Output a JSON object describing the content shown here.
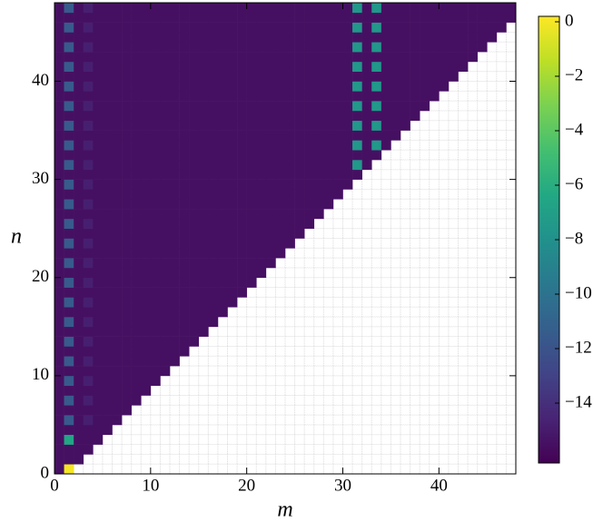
{
  "chart_data": {
    "type": "heatmap",
    "xlabel": "m",
    "ylabel": "n",
    "colormap": "viridis",
    "xlim": [
      0,
      48
    ],
    "ylim": [
      0,
      48
    ],
    "xticks": [
      0,
      10,
      20,
      30,
      40
    ],
    "yticks": [
      0,
      10,
      20,
      30,
      40
    ],
    "clim": [
      -16.2,
      0.2
    ],
    "cticks": [
      0,
      {
        "value": -2,
        "label": "−2"
      },
      {
        "value": -4,
        "label": "−4"
      },
      {
        "value": -6,
        "label": "−6"
      },
      {
        "value": -8,
        "label": "−8"
      },
      {
        "value": -10,
        "label": "−10"
      },
      {
        "value": -12,
        "label": "−12"
      },
      {
        "value": -14,
        "label": "−14"
      }
    ],
    "z": [
      [
        -15.5,
        0
      ],
      [
        -15.5,
        -15.5,
        -15.5
      ],
      [
        -15.5,
        -15.5,
        -15.5,
        -15.5
      ],
      [
        -15.5,
        -6.5,
        -15.5,
        -15.5,
        -15.5
      ],
      [
        -15.5,
        -15.5,
        -15.5,
        -15.5,
        -15.5,
        -15.5
      ],
      [
        -15.5,
        -11.5,
        -15.5,
        -14.8,
        -15.5,
        -15.5,
        -15.5
      ],
      [
        -15.5,
        -15.5,
        -15.5,
        -15.5,
        -15.5,
        -15.5,
        -15.5,
        -15.5
      ],
      [
        -15.5,
        -11.5,
        -15.5,
        -14.8,
        -15.5,
        -15.5,
        -15.5,
        -15.5,
        -15.5
      ],
      [
        -15.5,
        -15.5,
        -15.5,
        -15.5,
        -15.5,
        -15.5,
        -15.5,
        -15.5,
        -15.5,
        -15.5
      ],
      [
        -15.5,
        -11.5,
        -15.5,
        -14.8,
        -15.5,
        -15.5,
        -15.5,
        -15.5,
        -15.5,
        -15.5,
        -15.5
      ],
      [
        -15.5,
        -15.5,
        -15.5,
        -15.5,
        -15.5,
        -15.5,
        -15.5,
        -15.5,
        -15.5,
        -15.5,
        -15.5,
        -15.5
      ],
      [
        -15.5,
        -11.5,
        -15.5,
        -14.8,
        -15.5,
        -15.5,
        -15.5,
        -15.5,
        -15.5,
        -15.5,
        -15.5,
        -15.5,
        -15.5
      ],
      [
        -15.5,
        -15.5,
        -15.5,
        -15.5,
        -15.5,
        -15.5,
        -15.5,
        -15.5,
        -15.5,
        -15.5,
        -15.5,
        -15.5,
        -15.5,
        -15.5
      ],
      [
        -15.5,
        -11.5,
        -15.5,
        -14.8,
        -15.5,
        -15.5,
        -15.5,
        -15.5,
        -15.5,
        -15.5,
        -15.5,
        -15.5,
        -15.5,
        -15.5,
        -15.5
      ],
      [
        -15.5,
        -15.5,
        -15.5,
        -15.5,
        -15.5,
        -15.5,
        -15.5,
        -15.5,
        -15.5,
        -15.5,
        -15.5,
        -15.5,
        -15.5,
        -15.5,
        -15.5,
        -15.5
      ],
      [
        -15.5,
        -11.5,
        -15.5,
        -14.8,
        -15.5,
        -15.5,
        -15.5,
        -15.5,
        -15.5,
        -15.5,
        -15.5,
        -15.5,
        -15.5,
        -15.5,
        -15.5,
        -15.5,
        -15.5
      ],
      [
        -15.5,
        -15.5,
        -15.5,
        -15.5,
        -15.5,
        -15.5,
        -15.5,
        -15.5,
        -15.5,
        -15.5,
        -15.5,
        -15.5,
        -15.5,
        -15.5,
        -15.5,
        -15.5,
        -15.5,
        -15.5
      ],
      [
        -15.5,
        -11.5,
        -15.5,
        -14.8,
        -15.5,
        -15.5,
        -15.5,
        -15.5,
        -15.5,
        -15.5,
        -15.5,
        -15.5,
        -15.5,
        -15.5,
        -15.5,
        -15.5,
        -15.5,
        -15.5,
        -15.5
      ],
      [
        -15.5,
        -15.5,
        -15.5,
        -15.5,
        -15.5,
        -15.5,
        -15.5,
        -15.5,
        -15.5,
        -15.5,
        -15.5,
        -15.5,
        -15.5,
        -15.5,
        -15.5,
        -15.5,
        -15.5,
        -15.5,
        -15.5,
        -15.5
      ],
      [
        -15.5,
        -11.5,
        -15.5,
        -14.8,
        -15.5,
        -15.5,
        -15.5,
        -15.5,
        -15.5,
        -15.5,
        -15.5,
        -15.5,
        -15.5,
        -15.5,
        -15.5,
        -15.5,
        -15.5,
        -15.5,
        -15.5,
        -15.5,
        -15.5
      ],
      [
        -15.5,
        -15.5,
        -15.5,
        -15.5,
        -15.5,
        -15.5,
        -15.5,
        -15.5,
        -15.5,
        -15.5,
        -15.5,
        -15.5,
        -15.5,
        -15.5,
        -15.5,
        -15.5,
        -15.5,
        -15.5,
        -15.5,
        -15.5,
        -15.5,
        -15.5
      ],
      [
        -15.5,
        -11.5,
        -15.5,
        -14.8,
        -15.5,
        -15.5,
        -15.5,
        -15.5,
        -15.5,
        -15.5,
        -15.5,
        -15.5,
        -15.5,
        -15.5,
        -15.5,
        -15.5,
        -15.5,
        -15.5,
        -15.5,
        -15.5,
        -15.5,
        -15.5,
        -15.5
      ],
      [
        -15.5,
        -15.5,
        -15.5,
        -15.5,
        -15.5,
        -15.5,
        -15.5,
        -15.5,
        -15.5,
        -15.5,
        -15.5,
        -15.5,
        -15.5,
        -15.5,
        -15.5,
        -15.5,
        -15.5,
        -15.5,
        -15.5,
        -15.5,
        -15.5,
        -15.5,
        -15.5,
        -15.5
      ],
      [
        -15.5,
        -11.5,
        -15.5,
        -14.8,
        -15.5,
        -15.5,
        -15.5,
        -15.5,
        -15.5,
        -15.5,
        -15.5,
        -15.5,
        -15.5,
        -15.5,
        -15.5,
        -15.5,
        -15.5,
        -15.5,
        -15.5,
        -15.5,
        -15.5,
        -15.5,
        -15.5,
        -15.5,
        -15.5
      ],
      [
        -15.5,
        -15.5,
        -15.5,
        -15.5,
        -15.5,
        -15.5,
        -15.5,
        -15.5,
        -15.5,
        -15.5,
        -15.5,
        -15.5,
        -15.5,
        -15.5,
        -15.5,
        -15.5,
        -15.5,
        -15.5,
        -15.5,
        -15.5,
        -15.5,
        -15.5,
        -15.5,
        -15.5,
        -15.5,
        -15.5
      ],
      [
        -15.5,
        -11.5,
        -15.5,
        -14.8,
        -15.5,
        -15.5,
        -15.5,
        -15.5,
        -15.5,
        -15.5,
        -15.5,
        -15.5,
        -15.5,
        -15.5,
        -15.5,
        -15.5,
        -15.5,
        -15.5,
        -15.5,
        -15.5,
        -15.5,
        -15.5,
        -15.5,
        -15.5,
        -15.5,
        -15.5,
        -15.5
      ],
      [
        -15.5,
        -15.5,
        -15.5,
        -15.5,
        -15.5,
        -15.5,
        -15.5,
        -15.5,
        -15.5,
        -15.5,
        -15.5,
        -15.5,
        -15.5,
        -15.5,
        -15.5,
        -15.5,
        -15.5,
        -15.5,
        -15.5,
        -15.5,
        -15.5,
        -15.5,
        -15.5,
        -15.5,
        -15.5,
        -15.5,
        -15.5,
        -15.5
      ],
      [
        -15.5,
        -11.5,
        -15.5,
        -14.8,
        -15.5,
        -15.5,
        -15.5,
        -15.5,
        -15.5,
        -15.5,
        -15.5,
        -15.5,
        -15.5,
        -15.5,
        -15.5,
        -15.5,
        -15.5,
        -15.5,
        -15.5,
        -15.5,
        -15.5,
        -15.5,
        -15.5,
        -15.5,
        -15.5,
        -15.5,
        -15.5,
        -15.5,
        -15.5
      ],
      [
        -15.5,
        -15.5,
        -15.5,
        -15.5,
        -15.5,
        -15.5,
        -15.5,
        -15.5,
        -15.5,
        -15.5,
        -15.5,
        -15.5,
        -15.5,
        -15.5,
        -15.5,
        -15.5,
        -15.5,
        -15.5,
        -15.5,
        -15.5,
        -15.5,
        -15.5,
        -15.5,
        -15.5,
        -15.5,
        -15.5,
        -15.5,
        -15.5,
        -15.5,
        -15.5
      ],
      [
        -15.5,
        -11.5,
        -15.5,
        -14.8,
        -15.5,
        -15.5,
        -15.5,
        -15.5,
        -15.5,
        -15.5,
        -15.5,
        -15.5,
        -15.5,
        -15.5,
        -15.5,
        -15.5,
        -15.5,
        -15.5,
        -15.5,
        -15.5,
        -15.5,
        -15.5,
        -15.5,
        -15.5,
        -15.5,
        -15.5,
        -15.5,
        -15.5,
        -15.5,
        -15.5,
        -15.5
      ],
      [
        -15.5,
        -15.5,
        -15.5,
        -15.5,
        -15.5,
        -15.5,
        -15.5,
        -15.5,
        -15.5,
        -15.5,
        -15.5,
        -15.5,
        -15.5,
        -15.5,
        -15.5,
        -15.5,
        -15.5,
        -15.5,
        -15.5,
        -15.5,
        -15.5,
        -15.5,
        -15.5,
        -15.5,
        -15.5,
        -15.5,
        -15.5,
        -15.5,
        -15.5,
        -15.5,
        -15.5,
        -15.5
      ],
      [
        -15.5,
        -11.5,
        -15.5,
        -14.8,
        -15.5,
        -15.5,
        -15.5,
        -15.5,
        -15.5,
        -15.5,
        -15.5,
        -15.5,
        -15.5,
        -15.5,
        -15.5,
        -15.5,
        -15.5,
        -15.5,
        -15.5,
        -15.5,
        -15.5,
        -15.5,
        -15.5,
        -15.5,
        -15.5,
        -15.5,
        -15.5,
        -15.5,
        -15.5,
        -15.5,
        -15.5,
        -7.5,
        -15.5
      ],
      [
        -15.5,
        -15.5,
        -15.5,
        -15.5,
        -15.5,
        -15.5,
        -15.5,
        -15.5,
        -15.5,
        -15.5,
        -15.5,
        -15.5,
        -15.5,
        -15.5,
        -15.5,
        -15.5,
        -15.5,
        -15.5,
        -15.5,
        -15.5,
        -15.5,
        -15.5,
        -15.5,
        -15.5,
        -15.5,
        -15.5,
        -15.5,
        -15.5,
        -15.5,
        -15.5,
        -15.5,
        -15.5,
        -15.5,
        -15.5
      ],
      [
        -15.5,
        -11.5,
        -15.5,
        -14.8,
        -15.5,
        -15.5,
        -15.5,
        -15.5,
        -15.5,
        -15.5,
        -15.5,
        -15.5,
        -15.5,
        -15.5,
        -15.5,
        -15.5,
        -15.5,
        -15.5,
        -15.5,
        -15.5,
        -15.5,
        -15.5,
        -15.5,
        -15.5,
        -15.5,
        -15.5,
        -15.5,
        -15.5,
        -15.5,
        -15.5,
        -15.5,
        -7.5,
        -15.5,
        -7.5,
        -15.5
      ],
      [
        -15.5,
        -15.5,
        -15.5,
        -15.5,
        -15.5,
        -15.5,
        -15.5,
        -15.5,
        -15.5,
        -15.5,
        -15.5,
        -15.5,
        -15.5,
        -15.5,
        -15.5,
        -15.5,
        -15.5,
        -15.5,
        -15.5,
        -15.5,
        -15.5,
        -15.5,
        -15.5,
        -15.5,
        -15.5,
        -15.5,
        -15.5,
        -15.5,
        -15.5,
        -15.5,
        -15.5,
        -15.5,
        -15.5,
        -15.5,
        -15.5,
        -15.5
      ],
      [
        -15.5,
        -11.5,
        -15.5,
        -14.8,
        -15.5,
        -15.5,
        -15.5,
        -15.5,
        -15.5,
        -15.5,
        -15.5,
        -15.5,
        -15.5,
        -15.5,
        -15.5,
        -15.5,
        -15.5,
        -15.5,
        -15.5,
        -15.5,
        -15.5,
        -15.5,
        -15.5,
        -15.5,
        -15.5,
        -15.5,
        -15.5,
        -15.5,
        -15.5,
        -15.5,
        -15.5,
        -7.5,
        -15.5,
        -7.5,
        -15.5,
        -15.5,
        -15.5
      ],
      [
        -15.5,
        -15.5,
        -15.5,
        -15.5,
        -15.5,
        -15.5,
        -15.5,
        -15.5,
        -15.5,
        -15.5,
        -15.5,
        -15.5,
        -15.5,
        -15.5,
        -15.5,
        -15.5,
        -15.5,
        -15.5,
        -15.5,
        -15.5,
        -15.5,
        -15.5,
        -15.5,
        -15.5,
        -15.5,
        -15.5,
        -15.5,
        -15.5,
        -15.5,
        -15.5,
        -15.5,
        -15.5,
        -15.5,
        -15.5,
        -15.5,
        -15.5,
        -15.5,
        -15.5
      ],
      [
        -15.5,
        -11.5,
        -15.5,
        -14.8,
        -15.5,
        -15.5,
        -15.5,
        -15.5,
        -15.5,
        -15.5,
        -15.5,
        -15.5,
        -15.5,
        -15.5,
        -15.5,
        -15.5,
        -15.5,
        -15.5,
        -15.5,
        -15.5,
        -15.5,
        -15.5,
        -15.5,
        -15.5,
        -15.5,
        -15.5,
        -15.5,
        -15.5,
        -15.5,
        -15.5,
        -15.5,
        -7.5,
        -15.5,
        -7.5,
        -15.5,
        -15.5,
        -15.5,
        -15.5,
        -15.5
      ],
      [
        -15.5,
        -15.5,
        -15.5,
        -15.5,
        -15.5,
        -15.5,
        -15.5,
        -15.5,
        -15.5,
        -15.5,
        -15.5,
        -15.5,
        -15.5,
        -15.5,
        -15.5,
        -15.5,
        -15.5,
        -15.5,
        -15.5,
        -15.5,
        -15.5,
        -15.5,
        -15.5,
        -15.5,
        -15.5,
        -15.5,
        -15.5,
        -15.5,
        -15.5,
        -15.5,
        -15.5,
        -15.5,
        -15.5,
        -15.5,
        -15.5,
        -15.5,
        -15.5,
        -15.5,
        -15.5,
        -15.5
      ],
      [
        -15.5,
        -11.5,
        -15.5,
        -14.8,
        -15.5,
        -15.5,
        -15.5,
        -15.5,
        -15.5,
        -15.5,
        -15.5,
        -15.5,
        -15.5,
        -15.5,
        -15.5,
        -15.5,
        -15.5,
        -15.5,
        -15.5,
        -15.5,
        -15.5,
        -15.5,
        -15.5,
        -15.5,
        -15.5,
        -15.5,
        -15.5,
        -15.5,
        -15.5,
        -15.5,
        -15.5,
        -7.5,
        -15.5,
        -7.5,
        -15.5,
        -15.5,
        -15.5,
        -15.5,
        -15.5,
        -15.5,
        -15.5
      ],
      [
        -15.5,
        -15.5,
        -15.5,
        -15.5,
        -15.5,
        -15.5,
        -15.5,
        -15.5,
        -15.5,
        -15.5,
        -15.5,
        -15.5,
        -15.5,
        -15.5,
        -15.5,
        -15.5,
        -15.5,
        -15.5,
        -15.5,
        -15.5,
        -15.5,
        -15.5,
        -15.5,
        -15.5,
        -15.5,
        -15.5,
        -15.5,
        -15.5,
        -15.5,
        -15.5,
        -15.5,
        -15.5,
        -15.5,
        -15.5,
        -15.5,
        -15.5,
        -15.5,
        -15.5,
        -15.5,
        -15.5,
        -15.5,
        -15.5
      ],
      [
        -15.5,
        -11.5,
        -15.5,
        -14.8,
        -15.5,
        -15.5,
        -15.5,
        -15.5,
        -15.5,
        -15.5,
        -15.5,
        -15.5,
        -15.5,
        -15.5,
        -15.5,
        -15.5,
        -15.5,
        -15.5,
        -15.5,
        -15.5,
        -15.5,
        -15.5,
        -15.5,
        -15.5,
        -15.5,
        -15.5,
        -15.5,
        -15.5,
        -15.5,
        -15.5,
        -15.5,
        -7.5,
        -15.5,
        -7.5,
        -15.5,
        -15.5,
        -15.5,
        -15.5,
        -15.5,
        -15.5,
        -15.5,
        -15.5,
        -15.5
      ],
      [
        -15.5,
        -15.5,
        -15.5,
        -15.5,
        -15.5,
        -15.5,
        -15.5,
        -15.5,
        -15.5,
        -15.5,
        -15.5,
        -15.5,
        -15.5,
        -15.5,
        -15.5,
        -15.5,
        -15.5,
        -15.5,
        -15.5,
        -15.5,
        -15.5,
        -15.5,
        -15.5,
        -15.5,
        -15.5,
        -15.5,
        -15.5,
        -15.5,
        -15.5,
        -15.5,
        -15.5,
        -15.5,
        -15.5,
        -15.5,
        -15.5,
        -15.5,
        -15.5,
        -15.5,
        -15.5,
        -15.5,
        -15.5,
        -15.5,
        -15.5,
        -15.5
      ],
      [
        -15.5,
        -11.5,
        -15.5,
        -14.8,
        -15.5,
        -15.5,
        -15.5,
        -15.5,
        -15.5,
        -15.5,
        -15.5,
        -15.5,
        -15.5,
        -15.5,
        -15.5,
        -15.5,
        -15.5,
        -15.5,
        -15.5,
        -15.5,
        -15.5,
        -15.5,
        -15.5,
        -15.5,
        -15.5,
        -15.5,
        -15.5,
        -15.5,
        -15.5,
        -15.5,
        -15.5,
        -7.5,
        -15.5,
        -7.5,
        -15.5,
        -15.5,
        -15.5,
        -15.5,
        -15.5,
        -15.5,
        -15.5,
        -15.5,
        -15.5,
        -15.5,
        -15.5
      ],
      [
        -15.5,
        -15.5,
        -15.5,
        -15.5,
        -15.5,
        -15.5,
        -15.5,
        -15.5,
        -15.5,
        -15.5,
        -15.5,
        -15.5,
        -15.5,
        -15.5,
        -15.5,
        -15.5,
        -15.5,
        -15.5,
        -15.5,
        -15.5,
        -15.5,
        -15.5,
        -15.5,
        -15.5,
        -15.5,
        -15.5,
        -15.5,
        -15.5,
        -15.5,
        -15.5,
        -15.5,
        -15.5,
        -15.5,
        -15.5,
        -15.5,
        -15.5,
        -15.5,
        -15.5,
        -15.5,
        -15.5,
        -15.5,
        -15.5,
        -15.5,
        -15.5,
        -15.5,
        -15.5
      ],
      [
        -15.5,
        -11.5,
        -15.5,
        -14.8,
        -15.5,
        -15.5,
        -15.5,
        -15.5,
        -15.5,
        -15.5,
        -15.5,
        -15.5,
        -15.5,
        -15.5,
        -15.5,
        -15.5,
        -15.5,
        -15.5,
        -15.5,
        -15.5,
        -15.5,
        -15.5,
        -15.5,
        -15.5,
        -15.5,
        -15.5,
        -15.5,
        -15.5,
        -15.5,
        -15.5,
        -15.5,
        -7.5,
        -15.5,
        -7.5,
        -15.5,
        -15.5,
        -15.5,
        -15.5,
        -15.5,
        -15.5,
        -15.5,
        -15.5,
        -15.5,
        -15.5,
        -15.5,
        -15.5,
        -15.5
      ],
      [
        -15.5,
        -15.5,
        -15.5,
        -15.5,
        -15.5,
        -15.5,
        -15.5,
        -15.5,
        -15.5,
        -15.5,
        -15.5,
        -15.5,
        -15.5,
        -15.5,
        -15.5,
        -15.5,
        -15.5,
        -15.5,
        -15.5,
        -15.5,
        -15.5,
        -15.5,
        -15.5,
        -15.5,
        -15.5,
        -15.5,
        -15.5,
        -15.5,
        -15.5,
        -15.5,
        -15.5,
        -15.5,
        -15.5,
        -15.5,
        -15.5,
        -15.5,
        -15.5,
        -15.5,
        -15.5,
        -15.5,
        -15.5,
        -15.5,
        -15.5,
        -15.5,
        -15.5,
        -15.5,
        -15.5,
        -15.5
      ],
      [
        -15.5,
        -11.5,
        -15.5,
        -14.8,
        -15.5,
        -15.5,
        -15.5,
        -15.5,
        -15.5,
        -15.5,
        -15.5,
        -15.5,
        -15.5,
        -15.5,
        -15.5,
        -15.5,
        -15.5,
        -15.5,
        -15.5,
        -15.5,
        -15.5,
        -15.5,
        -15.5,
        -15.5,
        -15.5,
        -15.5,
        -15.5,
        -15.5,
        -15.5,
        -15.5,
        -15.5,
        -7.5,
        -15.5,
        -7.5,
        -15.5,
        -15.5,
        -15.5,
        -15.5,
        -15.5,
        -15.5,
        -15.5,
        -15.5,
        -15.5,
        -15.5,
        -15.5,
        -15.5,
        -15.5,
        -15.5
      ]
    ]
  }
}
